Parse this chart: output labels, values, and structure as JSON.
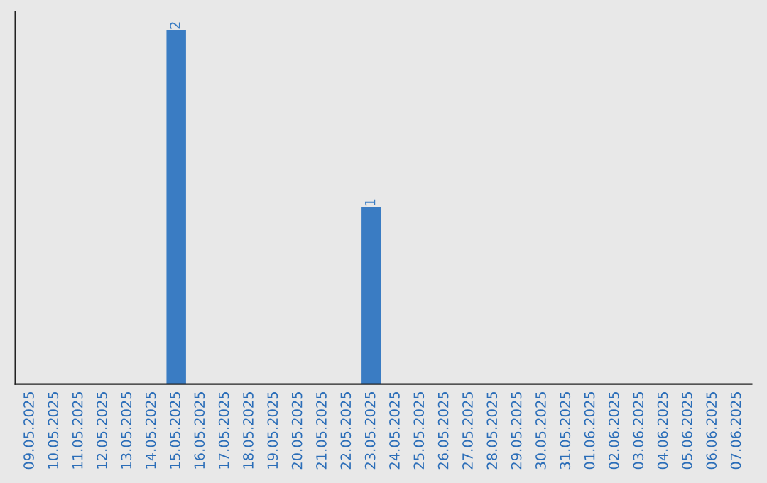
{
  "chart_data": {
    "type": "bar",
    "categories": [
      "09.05.2025",
      "10.05.2025",
      "11.05.2025",
      "12.05.2025",
      "13.05.2025",
      "14.05.2025",
      "15.05.2025",
      "16.05.2025",
      "17.05.2025",
      "18.05.2025",
      "19.05.2025",
      "20.05.2025",
      "21.05.2025",
      "22.05.2025",
      "23.05.2025",
      "24.05.2025",
      "25.05.2025",
      "26.05.2025",
      "27.05.2025",
      "28.05.2025",
      "29.05.2025",
      "30.05.2025",
      "31.05.2025",
      "01.06.2025",
      "02.06.2025",
      "03.06.2025",
      "04.06.2025",
      "05.06.2025",
      "06.06.2025",
      "07.06.2025"
    ],
    "values": [
      0,
      0,
      0,
      0,
      0,
      0,
      2,
      0,
      0,
      0,
      0,
      0,
      0,
      0,
      1,
      0,
      0,
      0,
      0,
      0,
      0,
      0,
      0,
      0,
      0,
      0,
      0,
      0,
      0,
      0
    ],
    "value_labels": [
      null,
      null,
      null,
      null,
      null,
      null,
      "2",
      null,
      null,
      null,
      null,
      null,
      null,
      null,
      "1",
      null,
      null,
      null,
      null,
      null,
      null,
      null,
      null,
      null,
      null,
      null,
      null,
      null,
      null,
      null
    ],
    "color": "#3a7cc3",
    "ylim": [
      0,
      2.1
    ],
    "tick_labels": "x",
    "grid": false,
    "legend": false
  }
}
